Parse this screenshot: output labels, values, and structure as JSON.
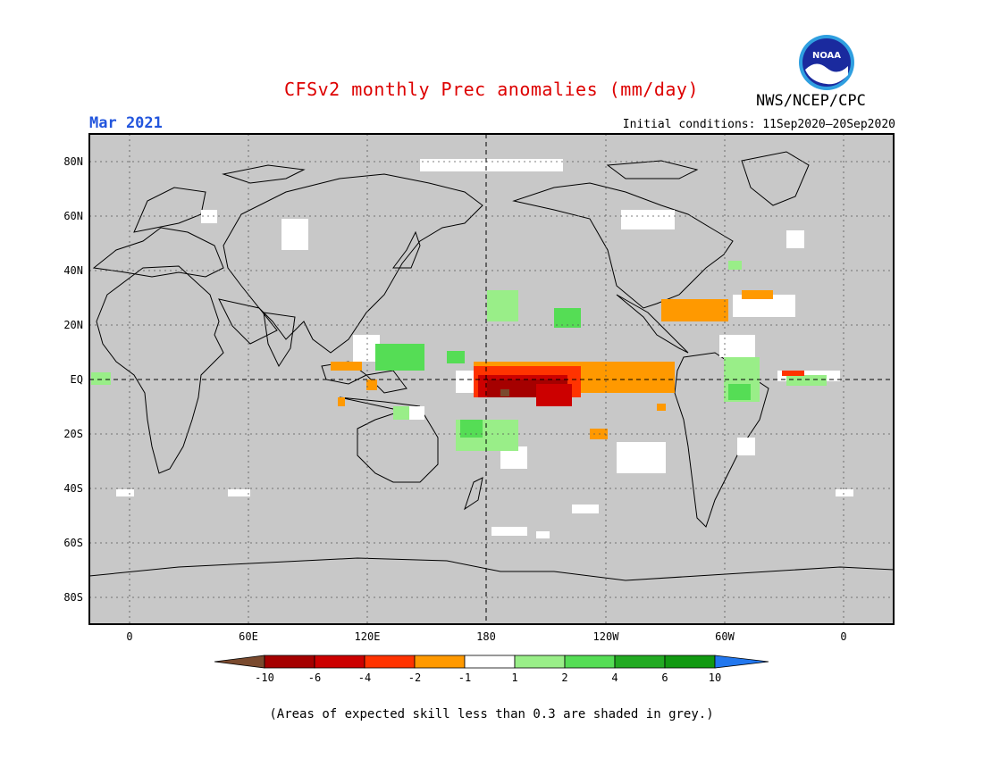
{
  "title": "CFSv2 monthly Prec anomalies (mm/day)",
  "target_month": "Mar 2021",
  "initial_conditions": "Initial conditions: 11Sep2020–20Sep2020",
  "agency": "NWS/NCEP/CPC",
  "logo_text": "NOAA",
  "footnote": "(Areas of expected skill less than 0.3 are shaded in grey.)",
  "lat_labels": [
    "80N",
    "60N",
    "40N",
    "20N",
    "EQ",
    "20S",
    "40S",
    "60S",
    "80S"
  ],
  "lon_labels": [
    "0",
    "60E",
    "120E",
    "180",
    "120W",
    "60W",
    "0"
  ],
  "colorbar": {
    "colors": [
      "#7a4a2e",
      "#a50000",
      "#cc0000",
      "#ff3300",
      "#ff9900",
      "#ffffff",
      "#99ee88",
      "#55dd55",
      "#22aa22",
      "#119911",
      "#2277ee"
    ],
    "labels": [
      "-10",
      "-6",
      "-4",
      "-2",
      "-1",
      "1",
      "2",
      "4",
      "6",
      "10"
    ]
  },
  "anomaly_colors": {
    "grey_no_skill": "#c8c8c8",
    "dry_strong": "#a50000",
    "dry_moderate": "#cc0000",
    "dry": "#ff3300",
    "dry_weak": "#ff9900",
    "near_zero": "#ffffff",
    "wet_weak": "#99ee88",
    "wet": "#55dd55"
  }
}
